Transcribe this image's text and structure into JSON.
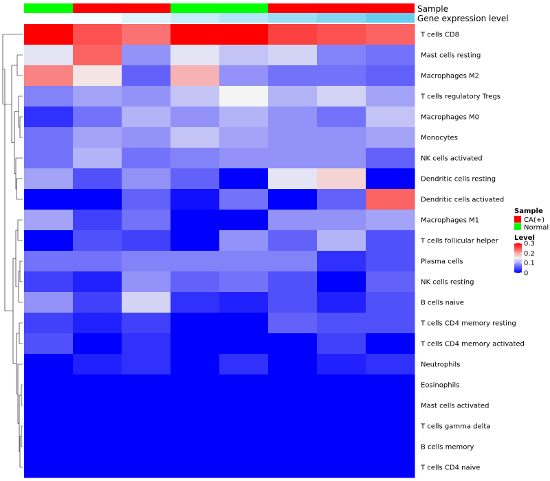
{
  "chart_data": {
    "type": "heatmap",
    "annotations": {
      "sample_label": "Sample",
      "expression_label": "Gene expression level",
      "sample": [
        "Normal",
        "CA(+)",
        "CA(+)",
        "Normal",
        "Normal",
        "CA(+)",
        "CA(+)",
        "CA(+)"
      ],
      "expression": [
        0.0,
        0.05,
        0.2,
        0.35,
        0.45,
        0.6,
        0.75,
        0.9
      ]
    },
    "rows": [
      "T cells CD8",
      "Mast cells resting",
      "Macrophages M2",
      "T cells regulatory  Tregs",
      "Macrophages M0",
      "Monocytes",
      "NK cells activated",
      "Dendritic cells resting",
      "Dendritic cells activated",
      "Macrophages M1",
      "T cells follicular helper",
      "Plasma cells",
      "NK cells resting",
      "B cells naive",
      "T cells CD4 memory resting",
      "T cells CD4 memory activated",
      "Neutrophils",
      "Eosinophils",
      "Mast cells activated",
      "T cells gamma delta",
      "B cells memory",
      "T cells CD4 naive"
    ],
    "values": [
      [
        0.3,
        0.25,
        0.23,
        0.3,
        0.3,
        0.26,
        0.25,
        0.24
      ],
      [
        0.14,
        0.24,
        0.09,
        0.14,
        0.12,
        0.13,
        0.08,
        0.07
      ],
      [
        0.22,
        0.16,
        0.06,
        0.19,
        0.09,
        0.07,
        0.07,
        0.06
      ],
      [
        0.08,
        0.1,
        0.09,
        0.12,
        0.15,
        0.11,
        0.13,
        0.1
      ],
      [
        0.03,
        0.07,
        0.11,
        0.09,
        0.11,
        0.09,
        0.07,
        0.12
      ],
      [
        0.07,
        0.1,
        0.09,
        0.12,
        0.1,
        0.09,
        0.09,
        0.1
      ],
      [
        0.07,
        0.11,
        0.07,
        0.08,
        0.09,
        0.09,
        0.09,
        0.06
      ],
      [
        0.1,
        0.05,
        0.09,
        0.06,
        0.0,
        0.14,
        0.17,
        0.0
      ],
      [
        0.0,
        0.0,
        0.06,
        0.01,
        0.07,
        0.0,
        0.06,
        0.24
      ],
      [
        0.1,
        0.04,
        0.07,
        0.0,
        0.0,
        0.09,
        0.09,
        0.1
      ],
      [
        0.0,
        0.05,
        0.04,
        0.0,
        0.09,
        0.06,
        0.11,
        0.05
      ],
      [
        0.07,
        0.07,
        0.08,
        0.08,
        0.08,
        0.08,
        0.03,
        0.05
      ],
      [
        0.04,
        0.02,
        0.09,
        0.06,
        0.07,
        0.05,
        0.0,
        0.06
      ],
      [
        0.09,
        0.04,
        0.13,
        0.03,
        0.02,
        0.05,
        0.02,
        0.05
      ],
      [
        0.04,
        0.02,
        0.04,
        0.0,
        0.0,
        0.06,
        0.05,
        0.05
      ],
      [
        0.05,
        0.0,
        0.03,
        0.0,
        0.0,
        0.0,
        0.04,
        0.0
      ],
      [
        0.0,
        0.02,
        0.03,
        0.0,
        0.03,
        0.0,
        0.02,
        0.03
      ],
      [
        0.0,
        0.0,
        0.0,
        0.0,
        0.0,
        0.0,
        0.0,
        0.0
      ],
      [
        0.0,
        0.0,
        0.0,
        0.0,
        0.0,
        0.0,
        0.0,
        0.0
      ],
      [
        0.0,
        0.0,
        0.0,
        0.0,
        0.0,
        0.0,
        0.0,
        0.0
      ],
      [
        0.0,
        0.0,
        0.0,
        0.0,
        0.0,
        0.0,
        0.0,
        0.0
      ],
      [
        0.0,
        0.0,
        0.0,
        0.0,
        0.0,
        0.0,
        0.0,
        0.0
      ]
    ],
    "color_scale": {
      "min": 0,
      "mid": 0.15,
      "max": 0.3,
      "low_color": "#0000ff",
      "mid_color": "#f4f4f4",
      "high_color": "#ff0000"
    },
    "legend": {
      "sample_title": "Sample",
      "sample_items": [
        {
          "label": "CA(+)",
          "color": "#ff0000"
        },
        {
          "label": "Normal",
          "color": "#00ff00"
        }
      ],
      "level_title": "Level",
      "level_ticks": [
        {
          "value": 0.3,
          "label": "0.3"
        },
        {
          "value": 0.2,
          "label": "0.2"
        },
        {
          "value": 0.1,
          "label": "0.1"
        },
        {
          "value": 0,
          "label": "0"
        }
      ]
    },
    "sample_colors": {
      "CA(+)": "#ff0000",
      "Normal": "#00ff00"
    },
    "expression_colors": {
      "low": "#ffffff",
      "high": "#55c8ef"
    }
  }
}
